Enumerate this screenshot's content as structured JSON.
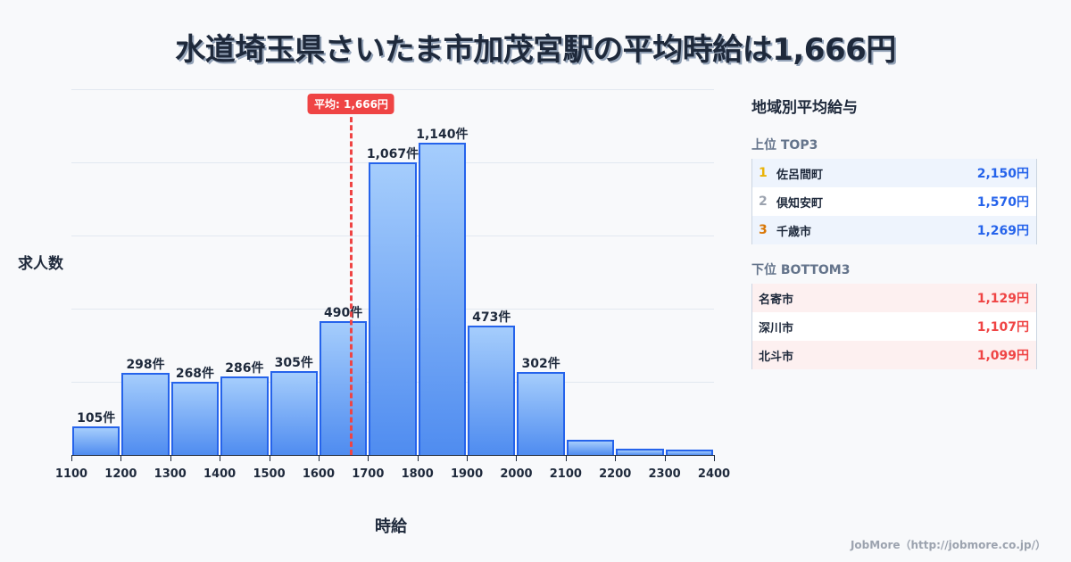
{
  "title": "水道埼玉県さいたま市加茂宮駅の平均時給は1,666円",
  "axis": {
    "ylabel": "求人数",
    "xlabel": "時給"
  },
  "average": {
    "label": "平均: 1,666円",
    "value": 1666,
    "color": "#ef4444"
  },
  "chart_data": {
    "type": "bar",
    "title": "水道埼玉県さいたま市加茂宮駅の平均時給は1,666円",
    "xlabel": "時給",
    "ylabel": "求人数",
    "x_ticks": [
      1100,
      1200,
      1300,
      1400,
      1500,
      1600,
      1700,
      1800,
      1900,
      2000,
      2100,
      2200,
      2300,
      2400
    ],
    "categories": [
      "1100-1200",
      "1200-1300",
      "1300-1400",
      "1400-1500",
      "1500-1600",
      "1600-1700",
      "1700-1800",
      "1800-1900",
      "1900-2000",
      "2000-2100",
      "2100-2200",
      "2200-2300",
      "2300-2400"
    ],
    "values": [
      105,
      298,
      268,
      286,
      305,
      490,
      1067,
      1140,
      473,
      302,
      55,
      23,
      20
    ],
    "labels": [
      "105件",
      "298件",
      "268件",
      "286件",
      "305件",
      "490件",
      "1,067件",
      "1,140件",
      "473件",
      "302件",
      "",
      "",
      ""
    ],
    "ylim": [
      0,
      1335
    ],
    "grid": true,
    "annotations": [
      {
        "type": "vline",
        "x": 1666,
        "label": "平均: 1,666円"
      }
    ],
    "bar_color": "#4f8cf0",
    "bar_edge_color": "#2563eb"
  },
  "panel": {
    "title": "地域別平均給与",
    "top": {
      "heading": "上位 TOP3",
      "items": [
        {
          "rank": "1",
          "name": "佐呂間町",
          "value": "2,150円",
          "rank_color": "#eab308"
        },
        {
          "rank": "2",
          "name": "倶知安町",
          "value": "1,570円",
          "rank_color": "#9ca3af"
        },
        {
          "rank": "3",
          "name": "千歳市",
          "value": "1,269円",
          "rank_color": "#d97706"
        }
      ]
    },
    "bottom": {
      "heading": "下位 BOTTOM3",
      "items": [
        {
          "name": "名寄市",
          "value": "1,129円"
        },
        {
          "name": "深川市",
          "value": "1,107円"
        },
        {
          "name": "北斗市",
          "value": "1,099円"
        }
      ]
    }
  },
  "footer": "JobMore（http://jobmore.co.jp/）"
}
